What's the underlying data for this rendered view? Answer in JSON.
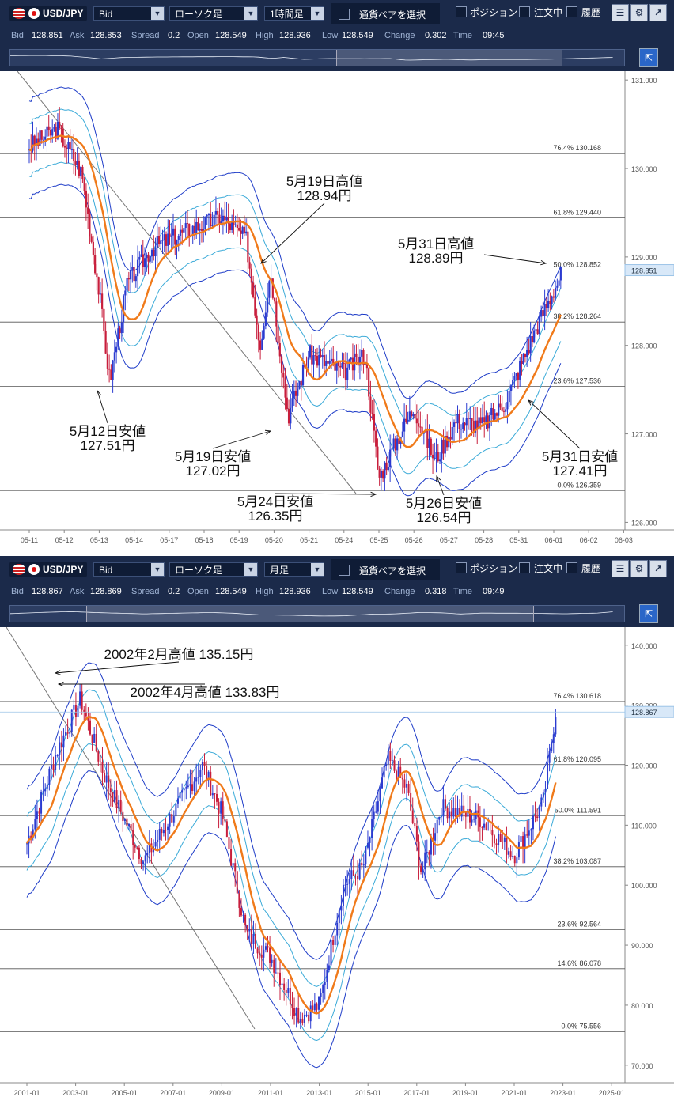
{
  "panels": [
    {
      "toolbar": {
        "symbol": "USD/JPY",
        "price_type": "Bid",
        "chart_type": "ローソク足",
        "timeframe": "1時間足",
        "pair_select_label": "通貨ペアを選択",
        "position_label": "ポジション",
        "order_label": "注文中",
        "history_label": "履歴"
      },
      "quote": {
        "bid_label": "Bid",
        "bid": "128.851",
        "ask_label": "Ask",
        "ask": "128.853",
        "spread_label": "Spread",
        "spread": "0.2",
        "open_label": "Open",
        "open": "128.549",
        "high_label": "High",
        "high": "128.936",
        "low_label": "Low",
        "low": "128.549",
        "change_label": "Change",
        "change": "0.302",
        "time_label": "Time",
        "time": "09:45"
      },
      "chart_data": {
        "type": "candlestick",
        "y_axis_ticks": [
          "131.000",
          "130.000",
          "129.000",
          "128.000",
          "127.000",
          "126.000"
        ],
        "ylim": [
          125.95,
          131.1
        ],
        "x_axis_ticks": [
          "05-11",
          "05-12",
          "05-13",
          "05-14",
          "05-17",
          "05-18",
          "05-19",
          "05-20",
          "05-21",
          "05-24",
          "05-25",
          "05-26",
          "05-27",
          "05-28",
          "05-31",
          "06-01",
          "06-02",
          "06-03"
        ],
        "current_price_label": "128.851",
        "current_price": 128.851,
        "fibonacci": [
          {
            "label": "76.4%",
            "value": "130.168"
          },
          {
            "label": "61.8%",
            "value": "129.440"
          },
          {
            "label": "50.0%",
            "value": "128.852"
          },
          {
            "label": "38.2%",
            "value": "128.264"
          },
          {
            "label": "23.6%",
            "value": "127.536"
          },
          {
            "label": "0.0%",
            "value": "126.359"
          }
        ],
        "annotations": [
          {
            "line1": "5月19日高値",
            "line2": "128.94円"
          },
          {
            "line1": "5月31日高値",
            "line2": "128.89円"
          },
          {
            "line1": "5月12日安値",
            "line2": "127.51円"
          },
          {
            "line1": "5月19日安値",
            "line2": "127.02円"
          },
          {
            "line1": "5月24日安値",
            "line2": "126.35円"
          },
          {
            "line1": "5月26日安値",
            "line2": "126.54円"
          },
          {
            "line1": "5月31日安値",
            "line2": "127.41円"
          }
        ],
        "colors": {
          "ma": "#f07a1a",
          "bands_outer": "#1e3cc8",
          "bands_inner": "#3aaad8",
          "up": "#2b3bd0",
          "down": "#c81e3c",
          "grid": "#555555"
        },
        "price_path_keypoints": [
          {
            "x_index": 0.0,
            "close": 130.25
          },
          {
            "x_index": 0.8,
            "close": 130.45
          },
          {
            "x_index": 1.5,
            "close": 129.95
          },
          {
            "x_index": 2.0,
            "close": 128.6
          },
          {
            "x_index": 2.3,
            "close": 127.6
          },
          {
            "x_index": 2.8,
            "close": 128.7
          },
          {
            "x_index": 3.5,
            "close": 129.1
          },
          {
            "x_index": 4.5,
            "close": 129.3
          },
          {
            "x_index": 5.5,
            "close": 129.45
          },
          {
            "x_index": 6.2,
            "close": 129.2
          },
          {
            "x_index": 6.6,
            "close": 128.0
          },
          {
            "x_index": 6.9,
            "close": 128.85
          },
          {
            "x_index": 7.4,
            "close": 127.2
          },
          {
            "x_index": 8.0,
            "close": 127.9
          },
          {
            "x_index": 9.0,
            "close": 127.7
          },
          {
            "x_index": 9.6,
            "close": 127.9
          },
          {
            "x_index": 10.0,
            "close": 126.5
          },
          {
            "x_index": 10.6,
            "close": 127.0
          },
          {
            "x_index": 11.0,
            "close": 127.3
          },
          {
            "x_index": 11.6,
            "close": 126.7
          },
          {
            "x_index": 12.2,
            "close": 127.15
          },
          {
            "x_index": 13.0,
            "close": 127.1
          },
          {
            "x_index": 13.6,
            "close": 127.35
          },
          {
            "x_index": 14.5,
            "close": 128.2
          },
          {
            "x_index": 15.2,
            "close": 128.8
          }
        ]
      }
    },
    {
      "toolbar": {
        "symbol": "USD/JPY",
        "price_type": "Bid",
        "chart_type": "ローソク足",
        "timeframe": "月足",
        "pair_select_label": "通貨ペアを選択",
        "position_label": "ポジション",
        "order_label": "注文中",
        "history_label": "履歴"
      },
      "quote": {
        "bid_label": "Bid",
        "bid": "128.867",
        "ask_label": "Ask",
        "ask": "128.869",
        "spread_label": "Spread",
        "spread": "0.2",
        "open_label": "Open",
        "open": "128.549",
        "high_label": "High",
        "high": "128.936",
        "low_label": "Low",
        "low": "128.549",
        "change_label": "Change",
        "change": "0.318",
        "time_label": "Time",
        "time": "09:49"
      },
      "chart_data": {
        "type": "candlestick",
        "y_axis_ticks": [
          "140.000",
          "130.000",
          "120.000",
          "110.000",
          "100.000",
          "90.000",
          "80.000",
          "70.000"
        ],
        "ylim": [
          67.6,
          143.0
        ],
        "x_axis_ticks": [
          "2001-01",
          "2003-01",
          "2005-01",
          "2007-01",
          "2009-01",
          "2011-01",
          "2013-01",
          "2015-01",
          "2017-01",
          "2019-01",
          "2021-01",
          "2023-01",
          "2025-01"
        ],
        "current_price_label": "128.867",
        "current_price": 128.867,
        "fibonacci": [
          {
            "label": "76.4%",
            "value": "130.618"
          },
          {
            "label": "61.8%",
            "value": "120.095"
          },
          {
            "label": "50.0%",
            "value": "111.591"
          },
          {
            "label": "38.2%",
            "value": "103.087"
          },
          {
            "label": "23.6%",
            "value": "92.564"
          },
          {
            "label": "14.6%",
            "value": "86.078"
          },
          {
            "label": "0.0%",
            "value": "75.556"
          }
        ],
        "annotations": [
          {
            "line1": "2002年2月高値 135.15円"
          },
          {
            "line1": "2002年4月高値 133.83円"
          }
        ],
        "colors": {
          "ma": "#f07a1a",
          "bands_outer": "#1e3cc8",
          "bands_inner": "#3aaad8",
          "up": "#2b3bd0",
          "down": "#c81e3c",
          "grid": "#555555"
        },
        "price_path_keypoints": [
          {
            "x_index": 0.0,
            "close": 107
          },
          {
            "x_index": 0.6,
            "close": 122
          },
          {
            "x_index": 1.1,
            "close": 131
          },
          {
            "x_index": 1.6,
            "close": 118
          },
          {
            "x_index": 2.4,
            "close": 104
          },
          {
            "x_index": 3.0,
            "close": 112
          },
          {
            "x_index": 3.6,
            "close": 120
          },
          {
            "x_index": 4.0,
            "close": 112
          },
          {
            "x_index": 4.5,
            "close": 92
          },
          {
            "x_index": 5.0,
            "close": 88
          },
          {
            "x_index": 5.6,
            "close": 78
          },
          {
            "x_index": 6.0,
            "close": 80
          },
          {
            "x_index": 6.5,
            "close": 100
          },
          {
            "x_index": 6.9,
            "close": 103
          },
          {
            "x_index": 7.4,
            "close": 121
          },
          {
            "x_index": 7.8,
            "close": 116
          },
          {
            "x_index": 8.1,
            "close": 102
          },
          {
            "x_index": 8.5,
            "close": 113
          },
          {
            "x_index": 9.3,
            "close": 111
          },
          {
            "x_index": 10.0,
            "close": 105
          },
          {
            "x_index": 10.6,
            "close": 114
          },
          {
            "x_index": 10.85,
            "close": 129
          }
        ]
      }
    }
  ]
}
